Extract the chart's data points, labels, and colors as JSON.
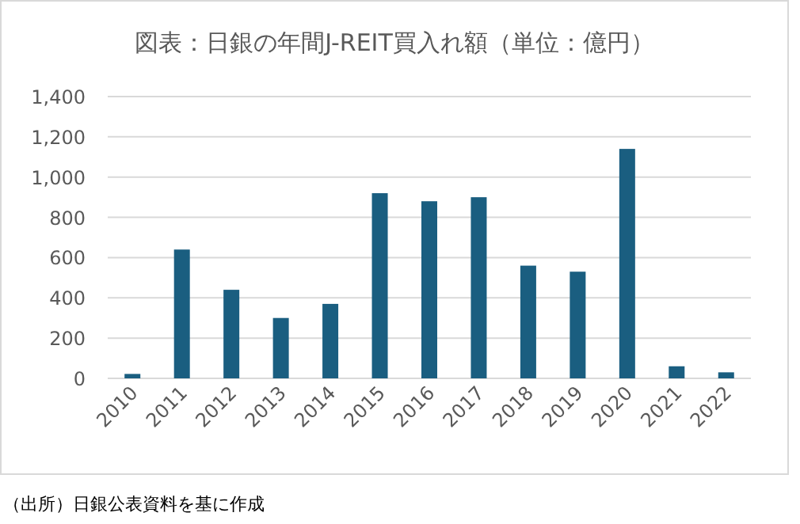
{
  "chart_data": {
    "type": "bar",
    "title": "図表：日銀の年間J-REIT買入れ額（単位：億円）",
    "categories": [
      "2010",
      "2011",
      "2012",
      "2013",
      "2014",
      "2015",
      "2016",
      "2017",
      "2018",
      "2019",
      "2020",
      "2021",
      "2022"
    ],
    "values": [
      22,
      640,
      440,
      300,
      370,
      920,
      880,
      900,
      560,
      530,
      1140,
      60,
      30
    ],
    "color": "#1a5e80",
    "ylim": [
      0,
      1400
    ],
    "yticks": [
      {
        "value": 0,
        "label": "0"
      },
      {
        "value": 200,
        "label": "200"
      },
      {
        "value": 400,
        "label": "400"
      },
      {
        "value": 600,
        "label": "600"
      },
      {
        "value": 800,
        "label": "800"
      },
      {
        "value": 1000,
        "label": "1,000"
      },
      {
        "value": 1200,
        "label": "1,200"
      },
      {
        "value": 1400,
        "label": "1,400"
      }
    ],
    "grid": "y",
    "annotations": [
      "（出所）日銀公表資料を基に作成"
    ]
  }
}
